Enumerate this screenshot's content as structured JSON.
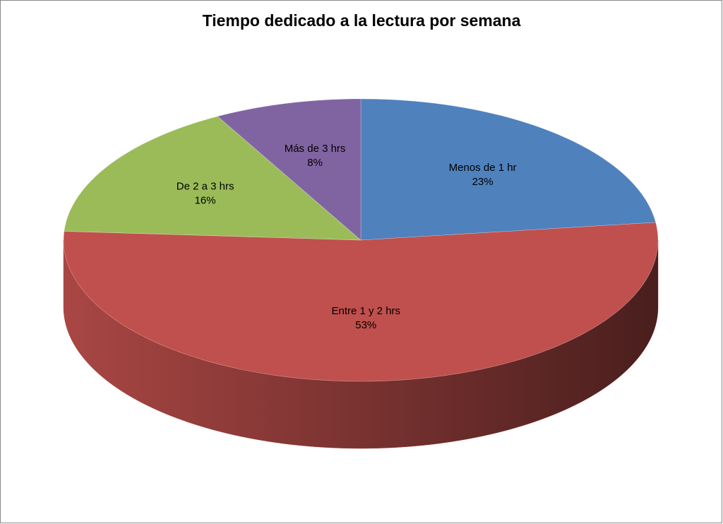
{
  "chart_data": {
    "type": "pie3d",
    "title": "Tiempo dedicado a la lectura por semana",
    "categories": [
      "Menos de 1 hr",
      "Entre 1 y 2 hrs",
      "De 2 a 3 hrs",
      "Más de 3 hrs"
    ],
    "values": [
      23,
      53,
      16,
      8
    ],
    "value_labels": [
      "23%",
      "53%",
      "16%",
      "8%"
    ],
    "colors": [
      "#4f81bd",
      "#c0504d",
      "#9bbb59",
      "#8064a2"
    ]
  }
}
